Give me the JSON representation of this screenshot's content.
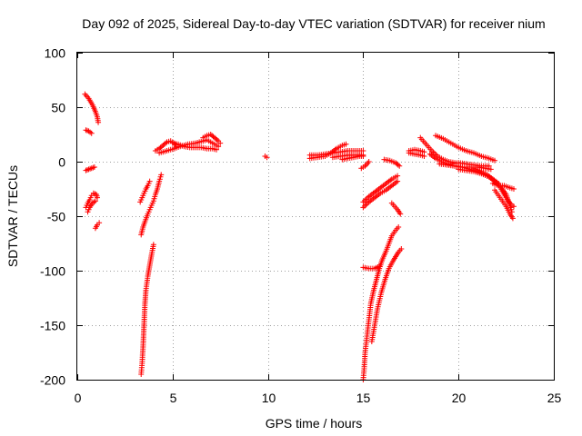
{
  "chart_data": {
    "type": "scatter",
    "title": "Day 092 of 2025, Sidereal Day-to-day VTEC variation (SDTVAR) for receiver nium",
    "xlabel": "GPS time / hours",
    "ylabel": "SDTVAR / TECUs",
    "xlim": [
      0,
      25
    ],
    "ylim": [
      -200,
      100
    ],
    "xticks": [
      0,
      5,
      10,
      15,
      20,
      25
    ],
    "yticks": [
      -200,
      -150,
      -100,
      -50,
      0,
      50,
      100
    ],
    "grid": true,
    "marker": "+",
    "color": "#ff0000",
    "segments": [
      [
        [
          0.4,
          62
        ],
        [
          0.6,
          58
        ],
        [
          0.8,
          52
        ],
        [
          0.95,
          46
        ],
        [
          1.05,
          41
        ],
        [
          1.1,
          36
        ]
      ],
      [
        [
          0.45,
          29
        ],
        [
          0.6,
          28
        ],
        [
          0.75,
          26
        ]
      ],
      [
        [
          0.45,
          -8
        ],
        [
          0.6,
          -7
        ],
        [
          0.75,
          -6
        ],
        [
          0.9,
          -5
        ]
      ],
      [
        [
          0.45,
          -42
        ],
        [
          0.55,
          -38
        ],
        [
          0.65,
          -35
        ],
        [
          0.75,
          -31
        ],
        [
          0.85,
          -29
        ],
        [
          1.0,
          -30
        ],
        [
          1.05,
          -33
        ]
      ],
      [
        [
          0.55,
          -46
        ],
        [
          0.65,
          -42
        ],
        [
          0.8,
          -38
        ],
        [
          0.95,
          -36
        ]
      ],
      [
        [
          0.95,
          -61
        ],
        [
          1.05,
          -58
        ],
        [
          1.15,
          -56
        ]
      ],
      [
        [
          3.35,
          -195
        ],
        [
          3.4,
          -185
        ],
        [
          3.45,
          -170
        ],
        [
          3.5,
          -150
        ],
        [
          3.55,
          -130
        ],
        [
          3.6,
          -118
        ],
        [
          3.7,
          -105
        ],
        [
          3.8,
          -95
        ],
        [
          3.9,
          -85
        ],
        [
          4.0,
          -76
        ]
      ],
      [
        [
          3.35,
          -67
        ],
        [
          3.45,
          -60
        ],
        [
          3.55,
          -55
        ],
        [
          3.7,
          -48
        ],
        [
          3.8,
          -44
        ],
        [
          3.9,
          -40
        ],
        [
          4.0,
          -36
        ],
        [
          4.1,
          -30
        ],
        [
          4.2,
          -25
        ],
        [
          4.3,
          -18
        ],
        [
          4.4,
          -12
        ]
      ],
      [
        [
          3.3,
          -37
        ],
        [
          3.4,
          -33
        ],
        [
          3.5,
          -29
        ],
        [
          3.6,
          -25
        ],
        [
          3.7,
          -22
        ],
        [
          3.8,
          -18
        ]
      ],
      [
        [
          4.1,
          10
        ],
        [
          4.3,
          12
        ],
        [
          4.5,
          15
        ],
        [
          4.7,
          18
        ],
        [
          4.9,
          19
        ],
        [
          5.1,
          17
        ],
        [
          5.2,
          14
        ]
      ],
      [
        [
          4.3,
          8
        ],
        [
          4.5,
          9
        ],
        [
          4.7,
          10
        ],
        [
          4.9,
          11
        ],
        [
          5.1,
          12
        ],
        [
          5.4,
          14
        ],
        [
          5.8,
          16
        ],
        [
          6.2,
          17
        ],
        [
          6.6,
          19
        ],
        [
          6.8,
          20
        ],
        [
          7.0,
          18
        ],
        [
          7.2,
          16
        ],
        [
          7.4,
          14
        ]
      ],
      [
        [
          5.0,
          17
        ],
        [
          5.3,
          16
        ],
        [
          5.6,
          14
        ],
        [
          5.9,
          13
        ],
        [
          6.2,
          13
        ],
        [
          6.5,
          13
        ],
        [
          6.8,
          12
        ],
        [
          7.1,
          12
        ],
        [
          7.3,
          11
        ]
      ],
      [
        [
          6.6,
          22
        ],
        [
          6.8,
          24
        ],
        [
          7.0,
          25
        ],
        [
          7.2,
          22
        ],
        [
          7.4,
          19
        ],
        [
          7.5,
          17
        ]
      ],
      [
        [
          9.85,
          5
        ],
        [
          9.95,
          4
        ]
      ],
      [
        [
          12.2,
          6
        ],
        [
          12.6,
          6
        ],
        [
          13.0,
          7
        ],
        [
          13.4,
          8
        ],
        [
          13.8,
          9
        ],
        [
          14.2,
          10
        ],
        [
          14.6,
          10
        ],
        [
          15.0,
          10
        ]
      ],
      [
        [
          12.2,
          3
        ],
        [
          12.6,
          4
        ],
        [
          13.0,
          5
        ],
        [
          13.3,
          8
        ],
        [
          13.6,
          12
        ],
        [
          13.9,
          15
        ],
        [
          14.1,
          16
        ]
      ],
      [
        [
          13.4,
          4
        ],
        [
          13.8,
          5
        ],
        [
          14.2,
          6
        ],
        [
          14.6,
          6
        ],
        [
          15.0,
          6
        ]
      ],
      [
        [
          13.9,
          2
        ],
        [
          14.2,
          3
        ],
        [
          14.5,
          4
        ],
        [
          14.8,
          5
        ],
        [
          15.0,
          5
        ]
      ],
      [
        [
          14.9,
          -6
        ],
        [
          15.1,
          -4
        ],
        [
          15.3,
          0
        ]
      ],
      [
        [
          15.0,
          -42
        ],
        [
          15.3,
          -37
        ],
        [
          15.6,
          -33
        ],
        [
          15.9,
          -29
        ],
        [
          16.2,
          -26
        ],
        [
          16.5,
          -22
        ],
        [
          16.8,
          -18
        ]
      ],
      [
        [
          15.0,
          -37
        ],
        [
          15.3,
          -32
        ],
        [
          15.6,
          -28
        ],
        [
          15.9,
          -24
        ],
        [
          16.2,
          -20
        ],
        [
          16.5,
          -16
        ],
        [
          16.8,
          -13
        ]
      ],
      [
        [
          15.0,
          -97
        ],
        [
          15.3,
          -98
        ],
        [
          15.6,
          -98
        ],
        [
          15.85,
          -96
        ]
      ],
      [
        [
          15.0,
          -200
        ],
        [
          15.05,
          -190
        ],
        [
          15.1,
          -175
        ],
        [
          15.2,
          -160
        ],
        [
          15.3,
          -145
        ],
        [
          15.4,
          -130
        ],
        [
          15.55,
          -118
        ],
        [
          15.7,
          -108
        ],
        [
          15.85,
          -98
        ],
        [
          16.0,
          -90
        ],
        [
          16.2,
          -82
        ],
        [
          16.35,
          -75
        ],
        [
          16.5,
          -68
        ],
        [
          16.7,
          -63
        ],
        [
          16.85,
          -60
        ]
      ],
      [
        [
          15.45,
          -165
        ],
        [
          15.6,
          -150
        ],
        [
          15.75,
          -135
        ],
        [
          15.95,
          -120
        ],
        [
          16.15,
          -108
        ],
        [
          16.35,
          -98
        ],
        [
          16.6,
          -90
        ],
        [
          16.85,
          -83
        ],
        [
          17.0,
          -80
        ]
      ],
      [
        [
          16.1,
          2
        ],
        [
          16.4,
          1
        ],
        [
          16.7,
          -1
        ],
        [
          16.9,
          -4
        ]
      ],
      [
        [
          16.5,
          -38
        ],
        [
          16.65,
          -41
        ],
        [
          16.8,
          -44
        ],
        [
          16.95,
          -48
        ]
      ],
      [
        [
          17.4,
          10
        ],
        [
          17.7,
          11
        ],
        [
          18.0,
          10
        ],
        [
          18.2,
          9
        ]
      ],
      [
        [
          17.4,
          8
        ],
        [
          17.7,
          7
        ],
        [
          18.0,
          6
        ],
        [
          18.2,
          5
        ]
      ],
      [
        [
          18.0,
          22
        ],
        [
          18.3,
          16
        ],
        [
          18.6,
          10
        ],
        [
          18.9,
          5
        ],
        [
          19.2,
          2
        ],
        [
          19.5,
          0
        ],
        [
          19.8,
          -1
        ]
      ],
      [
        [
          18.5,
          7
        ],
        [
          18.8,
          3
        ],
        [
          19.1,
          0
        ],
        [
          19.4,
          -2
        ],
        [
          19.8,
          -4
        ],
        [
          20.2,
          -5
        ],
        [
          20.6,
          -7
        ],
        [
          21.0,
          -9
        ],
        [
          21.4,
          -11
        ]
      ],
      [
        [
          18.8,
          24
        ],
        [
          19.2,
          21
        ],
        [
          19.6,
          17
        ],
        [
          20.0,
          13
        ],
        [
          20.4,
          10
        ],
        [
          20.8,
          8
        ],
        [
          21.2,
          5
        ],
        [
          21.6,
          3
        ],
        [
          21.9,
          1
        ]
      ],
      [
        [
          19.0,
          -2
        ],
        [
          19.4,
          -3
        ],
        [
          19.8,
          -4
        ],
        [
          20.2,
          -5
        ],
        [
          20.6,
          -5
        ],
        [
          21.0,
          -5
        ],
        [
          21.4,
          -6
        ],
        [
          21.7,
          -7
        ]
      ],
      [
        [
          19.6,
          -2
        ],
        [
          20.0,
          -1
        ],
        [
          20.4,
          -2
        ],
        [
          20.8,
          -3
        ],
        [
          21.2,
          -4
        ],
        [
          21.6,
          -4
        ]
      ],
      [
        [
          20.0,
          -7
        ],
        [
          20.4,
          -8
        ],
        [
          20.8,
          -9
        ],
        [
          21.2,
          -11
        ],
        [
          21.6,
          -14
        ],
        [
          21.9,
          -18
        ],
        [
          22.2,
          -23
        ],
        [
          22.5,
          -30
        ],
        [
          22.7,
          -40
        ],
        [
          22.8,
          -46
        ]
      ],
      [
        [
          20.8,
          -6
        ],
        [
          21.2,
          -9
        ],
        [
          21.5,
          -12
        ],
        [
          21.8,
          -16
        ],
        [
          22.1,
          -20
        ]
      ],
      [
        [
          21.8,
          -20
        ],
        [
          22.1,
          -22
        ],
        [
          22.4,
          -22
        ],
        [
          22.7,
          -24
        ],
        [
          22.9,
          -25
        ]
      ],
      [
        [
          22.2,
          -24
        ],
        [
          22.4,
          -30
        ],
        [
          22.6,
          -36
        ],
        [
          22.8,
          -40
        ],
        [
          22.9,
          -41
        ]
      ],
      [
        [
          21.9,
          -26
        ],
        [
          22.1,
          -31
        ],
        [
          22.3,
          -36
        ],
        [
          22.5,
          -41
        ],
        [
          22.7,
          -48
        ],
        [
          22.85,
          -52
        ]
      ]
    ]
  }
}
